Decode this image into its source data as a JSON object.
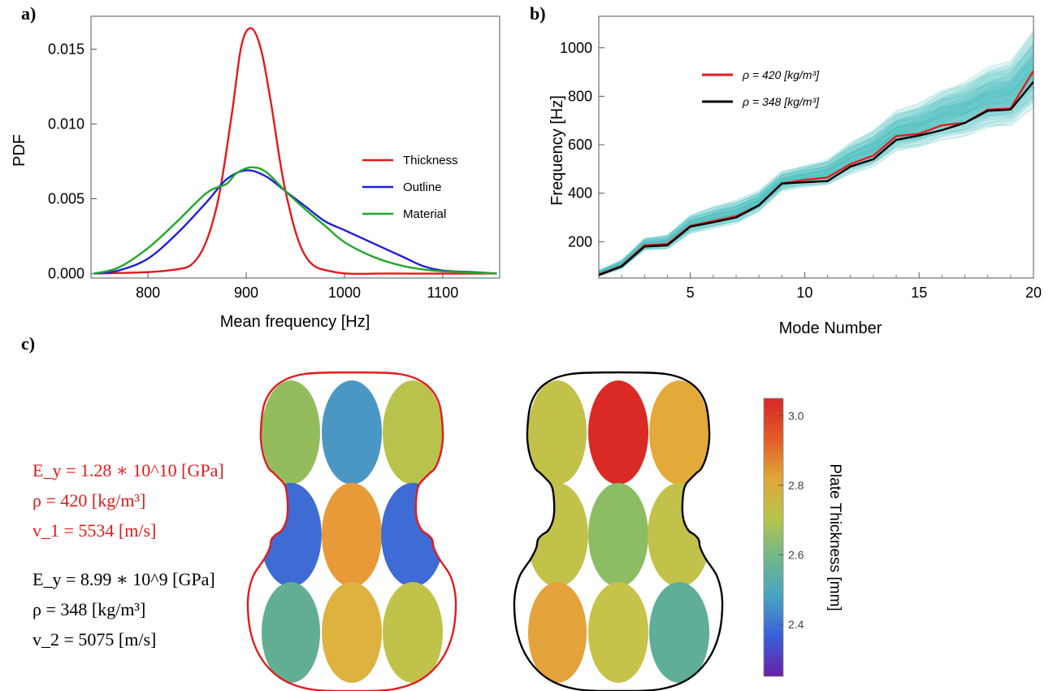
{
  "panel_labels": {
    "a": "a)",
    "b": "b)",
    "c": "c)"
  },
  "chart_data": [
    {
      "type": "line",
      "xlabel": "Mean frequency [Hz]",
      "ylabel": "PDF",
      "xlim": [
        742,
        1158
      ],
      "ylim": [
        -0.0003,
        0.0172
      ],
      "xticks": [
        800,
        900,
        1000,
        1100
      ],
      "yticks": [
        0.0,
        0.005,
        0.01,
        0.015
      ],
      "ytick_labels": [
        "0.000",
        "0.005",
        "0.010",
        "0.015"
      ],
      "legend": "center-right",
      "series": [
        {
          "name": "Thickness",
          "color": "#e31a1c",
          "x": [
            745,
            820,
            850,
            870,
            885,
            895,
            905,
            915,
            925,
            940,
            960,
            990,
            1050,
            1155
          ],
          "y": [
            0.0,
            0.0002,
            0.001,
            0.0045,
            0.0105,
            0.0152,
            0.0164,
            0.015,
            0.0115,
            0.0055,
            0.0012,
            0.0001,
            0.0,
            0.0
          ]
        },
        {
          "name": "Outline",
          "color": "#1f1fd6",
          "x": [
            745,
            770,
            800,
            830,
            860,
            880,
            900,
            920,
            940,
            960,
            980,
            1000,
            1030,
            1060,
            1080,
            1100,
            1130,
            1155
          ],
          "y": [
            0.0,
            0.0002,
            0.001,
            0.0027,
            0.0048,
            0.0063,
            0.0069,
            0.0065,
            0.0055,
            0.0045,
            0.0035,
            0.0029,
            0.002,
            0.0011,
            0.0005,
            0.0002,
            0.0001,
            0.0
          ]
        },
        {
          "name": "Material",
          "color": "#21a82a",
          "x": [
            745,
            770,
            800,
            830,
            860,
            880,
            890,
            905,
            920,
            940,
            960,
            980,
            1000,
            1030,
            1060,
            1090,
            1120,
            1155
          ],
          "y": [
            0.0,
            0.0004,
            0.0017,
            0.0035,
            0.0054,
            0.006,
            0.0067,
            0.0071,
            0.0068,
            0.0055,
            0.0043,
            0.0032,
            0.0021,
            0.0011,
            0.0005,
            0.0002,
            0.0001,
            0.0
          ]
        }
      ]
    },
    {
      "type": "line",
      "xlabel": "Mode Number",
      "ylabel": "Frequency [Hz]",
      "xlim": [
        1,
        20
      ],
      "ylim": [
        50,
        1130
      ],
      "xticks": [
        5,
        10,
        15,
        20
      ],
      "yticks": [
        200,
        400,
        600,
        800,
        1000
      ],
      "legend": "top-left",
      "series": [
        {
          "name": "ρ = 420 [kg/m³]",
          "color": "#e31a1c",
          "x": [
            1,
            2,
            3,
            4,
            5,
            6,
            7,
            8,
            9,
            10,
            11,
            12,
            13,
            14,
            15,
            16,
            17,
            18,
            19,
            20
          ],
          "y": [
            65,
            100,
            185,
            190,
            265,
            285,
            305,
            350,
            440,
            455,
            465,
            520,
            555,
            635,
            645,
            680,
            690,
            745,
            750,
            905
          ]
        },
        {
          "name": "ρ = 348 [kg/m³]",
          "color": "#000000",
          "x": [
            1,
            2,
            3,
            4,
            5,
            6,
            7,
            8,
            9,
            10,
            11,
            12,
            13,
            14,
            15,
            16,
            17,
            18,
            19,
            20
          ],
          "y": [
            62,
            98,
            180,
            185,
            262,
            280,
            300,
            350,
            440,
            445,
            450,
            510,
            540,
            620,
            638,
            660,
            690,
            740,
            745,
            860
          ]
        }
      ],
      "band": {
        "color": "#2ab5b5",
        "lower": [
          58,
          88,
          165,
          170,
          235,
          255,
          275,
          325,
          410,
          425,
          435,
          480,
          510,
          575,
          590,
          620,
          635,
          670,
          680,
          755
        ],
        "upper": [
          82,
          125,
          215,
          230,
          310,
          345,
          370,
          410,
          490,
          515,
          540,
          610,
          660,
          740,
          770,
          825,
          860,
          920,
          945,
          1075
        ]
      }
    }
  ],
  "equations": {
    "red": [
      "E_y = 1.28 ∗ 10^10 [GPa]",
      "ρ = 420 [kg/m³]",
      "v_1 = 5534 [m/s]"
    ],
    "black": [
      "E_y = 8.99 ∗ 10^9 [GPa]",
      "ρ = 348 [kg/m³]",
      "v_2 = 5075 [m/s]"
    ]
  },
  "colorbar": {
    "label": "Plate Thickness [mm]",
    "ticks": [
      2.4,
      2.6,
      2.8,
      3.0
    ],
    "tick_labels": [
      "2.4",
      "2.6",
      "2.8",
      "3.0"
    ],
    "range": [
      2.25,
      3.05
    ],
    "colors": [
      "#6a1fa8",
      "#3a5fd8",
      "#48a3c4",
      "#70b88a",
      "#b8c44a",
      "#e0a638",
      "#e25a28",
      "#d62828"
    ]
  },
  "plates": [
    {
      "outline": "#e31a1c",
      "cells": [
        "#93bd5c",
        "#4a97c4",
        "#b9c24a",
        "#3e6bd4",
        "#e79a37",
        "#3e6bd4",
        "#62ae92",
        "#ddb23e",
        "#c0c24a"
      ]
    },
    {
      "outline": "#000000",
      "cells": [
        "#c2c24a",
        "#d92a25",
        "#e3aa3a",
        "#c2c24a",
        "#8cbd63",
        "#c2c24a",
        "#e3a23a",
        "#c6c24a",
        "#5eae98"
      ]
    }
  ]
}
